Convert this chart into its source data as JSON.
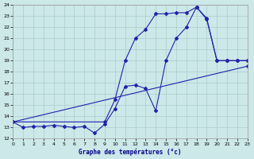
{
  "xlabel": "Graphe des températures (°c)",
  "background_color": "#cce8e8",
  "line_color": "#2222aa",
  "grid_color": "#aacccc",
  "xlim": [
    0,
    23
  ],
  "ylim": [
    12,
    24
  ],
  "xticks": [
    0,
    1,
    2,
    3,
    4,
    5,
    6,
    7,
    8,
    9,
    10,
    11,
    12,
    13,
    14,
    15,
    16,
    17,
    18,
    19,
    20,
    21,
    22,
    23
  ],
  "yticks": [
    12,
    13,
    14,
    15,
    16,
    17,
    18,
    19,
    20,
    21,
    22,
    23,
    24
  ],
  "series": [
    {
      "x": [
        0,
        1,
        2,
        3,
        4,
        5,
        6,
        7,
        8,
        9,
        10,
        11,
        12,
        13,
        14,
        15,
        16,
        17,
        18,
        19,
        20,
        21,
        22,
        23
      ],
      "y": [
        13.5,
        13.0,
        13.1,
        13.1,
        13.2,
        13.1,
        13.0,
        13.1,
        12.5,
        13.3,
        14.7,
        16.7,
        16.8,
        16.5,
        14.5,
        19.0,
        21.0,
        22.0,
        23.8,
        22.7,
        19.0,
        19.0,
        19.0,
        19.0
      ]
    },
    {
      "x": [
        0,
        9,
        10,
        11,
        12,
        13,
        14,
        15,
        16,
        17,
        18,
        19,
        20,
        21,
        22,
        23
      ],
      "y": [
        13.5,
        13.5,
        15.5,
        19.0,
        21.0,
        21.8,
        23.2,
        23.2,
        23.3,
        23.3,
        23.8,
        22.8,
        19.0,
        19.0,
        19.0,
        19.0
      ]
    },
    {
      "x": [
        0,
        23
      ],
      "y": [
        13.5,
        18.5
      ]
    }
  ]
}
